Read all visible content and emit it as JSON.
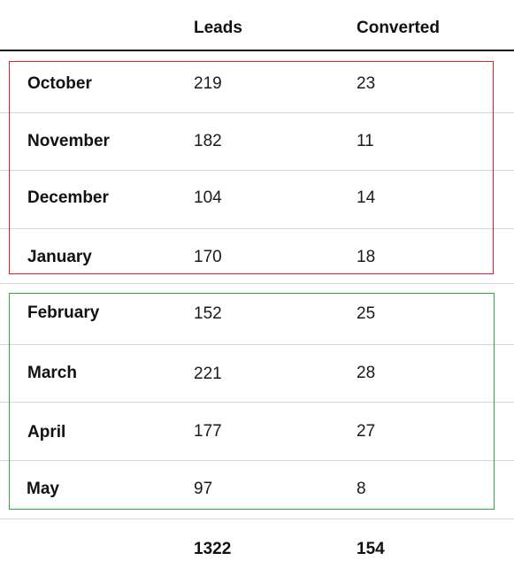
{
  "table": {
    "headers": {
      "month": "",
      "leads": "Leads",
      "converted": "Converted"
    },
    "rows": [
      {
        "month": "October",
        "leads": "219",
        "converted": "23"
      },
      {
        "month": "November",
        "leads": "182",
        "converted": "11"
      },
      {
        "month": "December",
        "leads": "104",
        "converted": "14"
      },
      {
        "month": "January",
        "leads": "170",
        "converted": "18"
      },
      {
        "month": "February",
        "leads": "152",
        "converted": "25"
      },
      {
        "month": "March",
        "leads": "221",
        "converted": "28"
      },
      {
        "month": "April",
        "leads": "177",
        "converted": "27"
      },
      {
        "month": "May",
        "leads": "97",
        "converted": "8"
      }
    ],
    "totals": {
      "label": "",
      "leads": "1322",
      "converted": "154"
    }
  },
  "highlights": {
    "red_group_color": "#e02020",
    "green_group_color": "#2eaa3c"
  }
}
